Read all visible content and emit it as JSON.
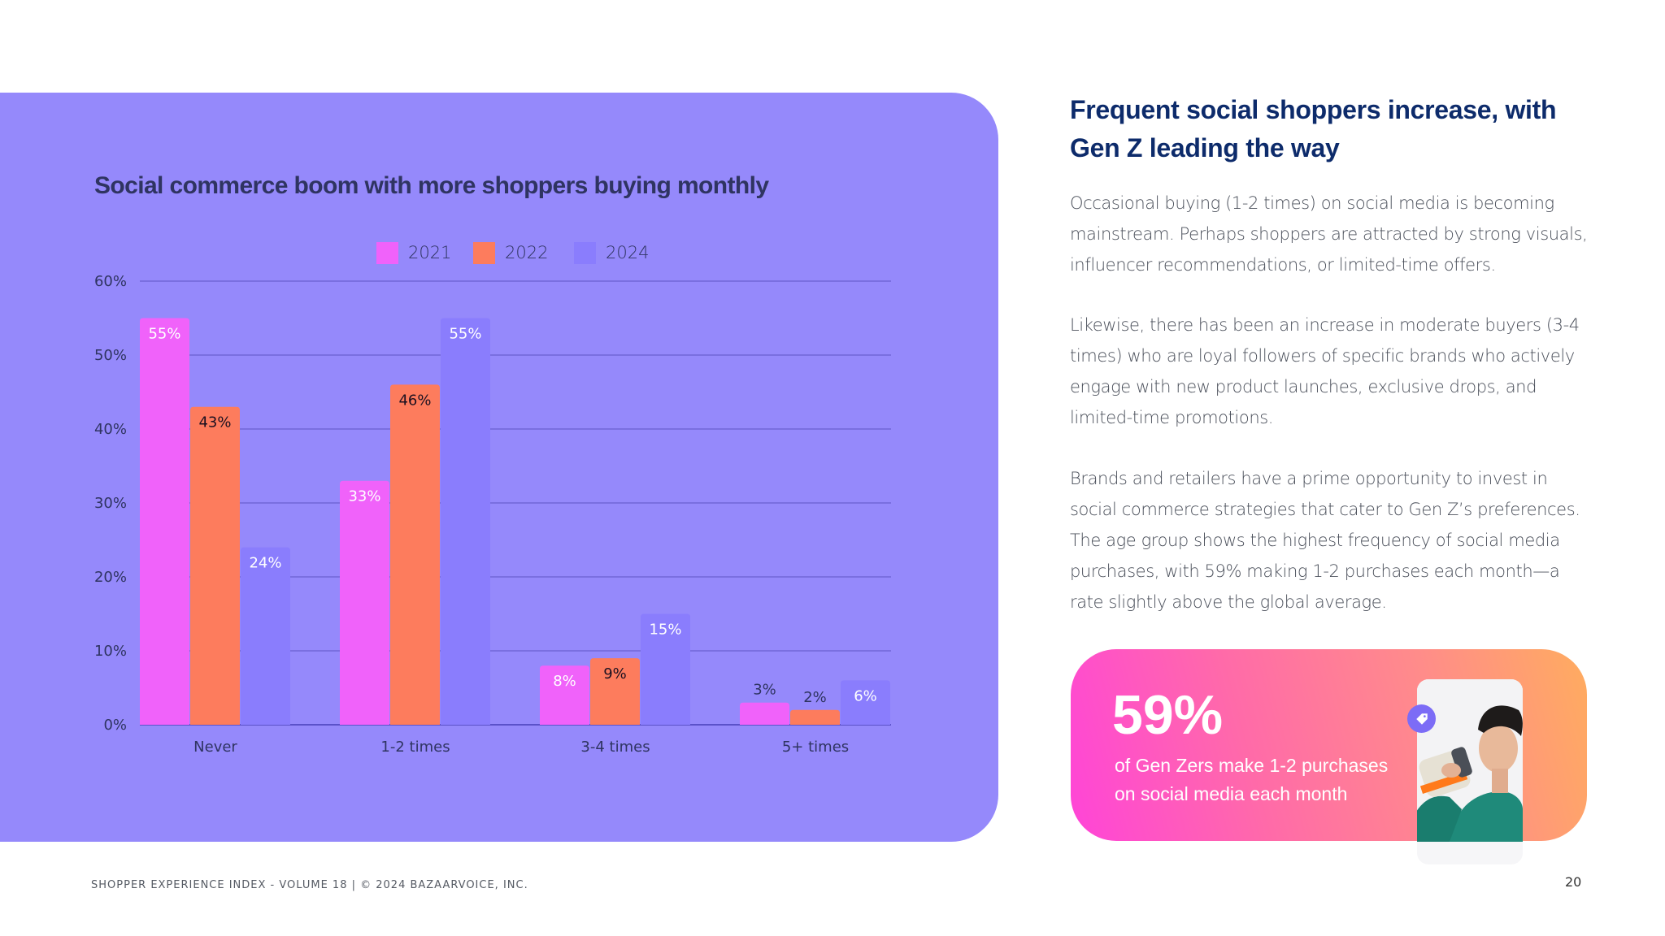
{
  "chart_data": {
    "type": "bar",
    "title": "Social commerce boom with more shoppers buying monthly",
    "categories": [
      "Never",
      "1-2 times",
      "3-4 times",
      "5+ times"
    ],
    "series": [
      {
        "name": "2021",
        "color": "#f062fa",
        "values": [
          55,
          33,
          8,
          3
        ],
        "labels": [
          "55%",
          "33%",
          "8%",
          "3%"
        ]
      },
      {
        "name": "2022",
        "color": "#fd7c5d",
        "values": [
          43,
          46,
          9,
          2
        ],
        "labels": [
          "43%",
          "46%",
          "9%",
          "2%"
        ]
      },
      {
        "name": "2024",
        "color": "#8a7dfd",
        "values": [
          24,
          55,
          15,
          6
        ],
        "labels": [
          "24%",
          "55%",
          "15%",
          "6%"
        ]
      }
    ],
    "yticks": [
      "0%",
      "10%",
      "20%",
      "30%",
      "40%",
      "50%",
      "60%"
    ],
    "ylim": [
      0,
      60
    ],
    "xlabel": "",
    "ylabel": "",
    "grid": true,
    "legend_position": "top-center"
  },
  "article": {
    "heading": "Frequent social shoppers increase, with Gen Z leading the way",
    "paragraphs": [
      "Occasional buying (1-2 times) on social media is becoming mainstream. Perhaps shoppers are attracted by strong visuals, influencer recommendations, or limited-time offers.",
      "Likewise, there has been an increase in moderate buyers (3-4 times) who are loyal followers of specific brands who actively engage with new product launches, exclusive drops, and limited-time promotions.",
      "Brands and retailers have a prime opportunity to invest in social commerce strategies that cater to Gen Z’s preferences. The age group shows the highest frequency of social media purchases, with 59% making 1-2 purchases each month—a rate slightly above the global average."
    ]
  },
  "stat_card": {
    "number": "59%",
    "caption": "of Gen Zers make 1-2 purchases on social media each month",
    "icon": "price-tag-icon",
    "image": "person-drinking-shake-photo"
  },
  "footer": {
    "text": "SHOPPER EXPERIENCE INDEX - VOLUME 18  |  © 2024 BAZAARVOICE, INC.",
    "page_number": "20"
  }
}
